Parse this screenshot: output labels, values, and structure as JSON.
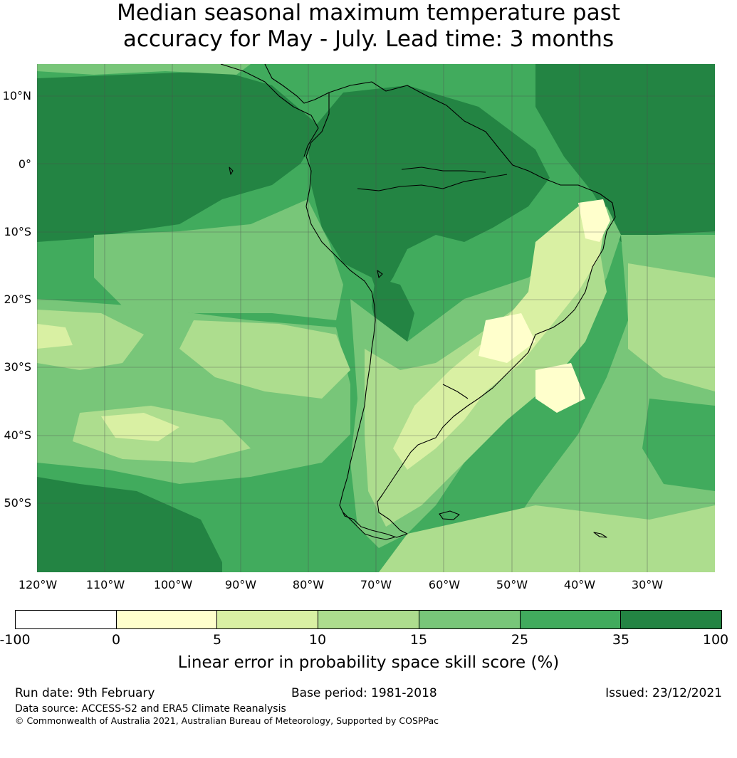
{
  "title": {
    "line1": "Median seasonal maximum temperature past",
    "line2": "accuracy for May - July. Lead time: 3 months"
  },
  "map": {
    "lat_labels": [
      "10°N",
      "0°",
      "10°S",
      "20°S",
      "30°S",
      "40°S",
      "50°S"
    ],
    "lon_labels": [
      "120°W",
      "110°W",
      "100°W",
      "90°W",
      "80°W",
      "70°W",
      "60°W",
      "50°W",
      "40°W",
      "30°W"
    ]
  },
  "colorbar": {
    "ticks": [
      "-100",
      "0",
      "5",
      "10",
      "15",
      "25",
      "35",
      "100"
    ],
    "colors": [
      "#ffffff",
      "#ffffcc",
      "#d9f0a3",
      "#addd8e",
      "#78c679",
      "#41ab5d",
      "#238443"
    ],
    "label": "Linear error in probability space skill score (%)"
  },
  "footer": {
    "run_date": "Run date: 9th February",
    "base_period": "Base period: 1981-2018",
    "issued": "Issued: 23/12/2021",
    "data_source": "Data source: ACCESS-S2 and ERA5 Climate Reanalysis",
    "copyright": "© Commonwealth of Australia 2021, Australian Bureau of Meteorology, Supported by COSPPac"
  }
}
